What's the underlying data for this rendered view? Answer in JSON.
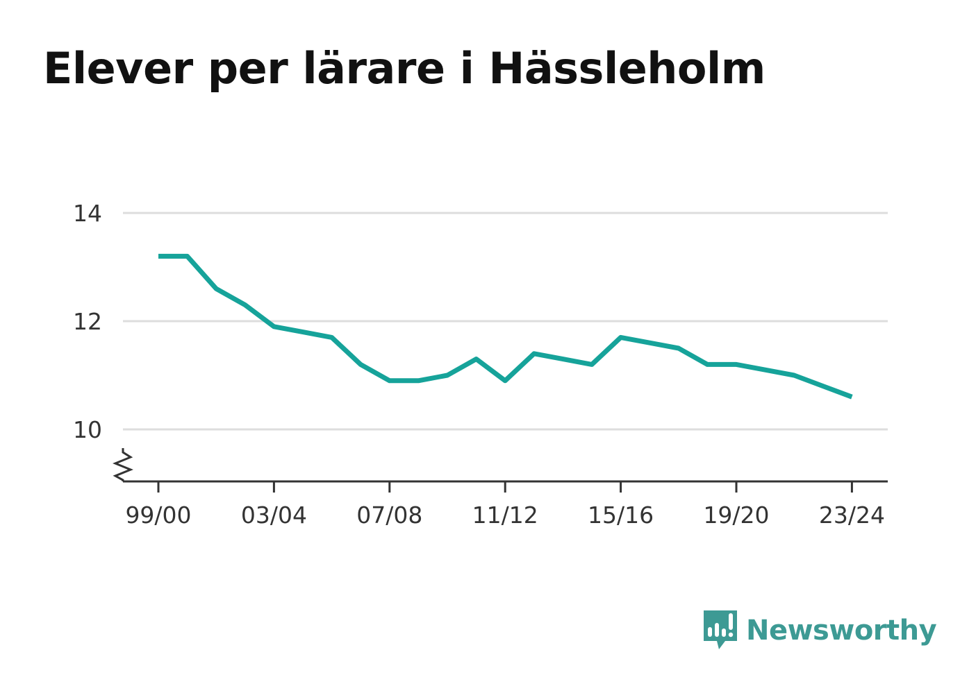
{
  "chart_data": {
    "type": "line",
    "title": "Elever per lärare i Hässleholm",
    "xlabel": "",
    "ylabel": "",
    "ylim": [
      9,
      14.5
    ],
    "yticks": [
      "10",
      "12",
      "14"
    ],
    "ytick_values": [
      10,
      12,
      14
    ],
    "grid": true,
    "broken_y_axis": true,
    "line_color": "#16a39a",
    "x": [
      "99/00",
      "00/01",
      "01/02",
      "02/03",
      "03/04",
      "04/05",
      "05/06",
      "06/07",
      "07/08",
      "08/09",
      "09/10",
      "10/11",
      "11/12",
      "12/13",
      "13/14",
      "14/15",
      "15/16",
      "16/17",
      "17/18",
      "18/19",
      "19/20",
      "20/21",
      "21/22",
      "22/23",
      "23/24"
    ],
    "xticks": [
      "99/00",
      "03/04",
      "07/08",
      "11/12",
      "15/16",
      "19/20",
      "23/24"
    ],
    "series": [
      {
        "values": [
          13.2,
          13.2,
          12.6,
          12.3,
          11.9,
          11.8,
          11.7,
          11.2,
          10.9,
          10.9,
          11.0,
          11.3,
          10.9,
          11.4,
          11.3,
          11.2,
          11.7,
          11.6,
          11.5,
          11.2,
          11.2,
          11.1,
          11.0,
          10.8,
          10.6
        ]
      }
    ]
  },
  "brand": {
    "name": "Newsworthy",
    "color": "#3d9a94"
  }
}
